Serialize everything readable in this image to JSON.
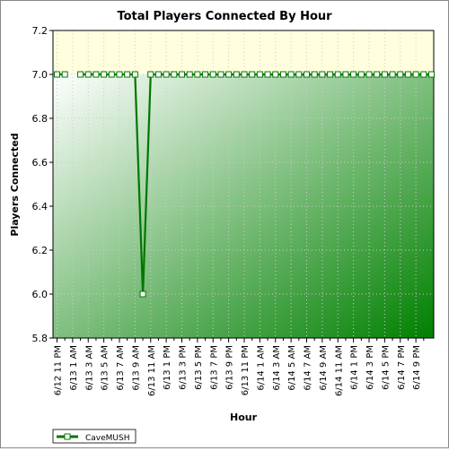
{
  "chart_data": {
    "type": "line",
    "title": "Total Players Connected By Hour",
    "xlabel": "Hour",
    "ylabel": "Players Connected",
    "ylim": [
      5.8,
      7.2
    ],
    "yticks": [
      "5.8",
      "6.0",
      "6.2",
      "6.4",
      "6.6",
      "6.8",
      "7.0",
      "7.2"
    ],
    "x_tick_labels": [
      "6/12 11 PM",
      "6/13 1 AM",
      "6/13 3 AM",
      "6/13 5 AM",
      "6/13 7 AM",
      "6/13 9 AM",
      "6/13 11 AM",
      "6/13 1 PM",
      "6/13 3 PM",
      "6/13 5 PM",
      "6/13 7 PM",
      "6/13 9 PM",
      "6/13 11 PM",
      "6/14 1 AM",
      "6/14 3 AM",
      "6/14 5 AM",
      "6/14 7 AM",
      "6/14 9 AM",
      "6/14 11 AM",
      "6/14 1 PM",
      "6/14 3 PM",
      "6/14 5 PM",
      "6/14 7 PM",
      "6/14 9 PM"
    ],
    "series": [
      {
        "name": "CaveMUSH",
        "color": "#007700",
        "values": [
          7,
          7,
          null,
          7,
          7,
          7,
          7,
          7,
          7,
          7,
          7,
          6,
          7,
          7,
          7,
          7,
          7,
          7,
          7,
          7,
          7,
          7,
          7,
          7,
          7,
          7,
          7,
          7,
          7,
          7,
          7,
          7,
          7,
          7,
          7,
          7,
          7,
          7,
          7,
          7,
          7,
          7,
          7,
          7,
          7,
          7,
          7,
          7,
          7
        ]
      }
    ],
    "grid": true,
    "legend_position": "bottom-left",
    "background": {
      "upper_band": "#ffffdd",
      "gradient_from": "#ffffff",
      "gradient_to": "#008000"
    }
  }
}
